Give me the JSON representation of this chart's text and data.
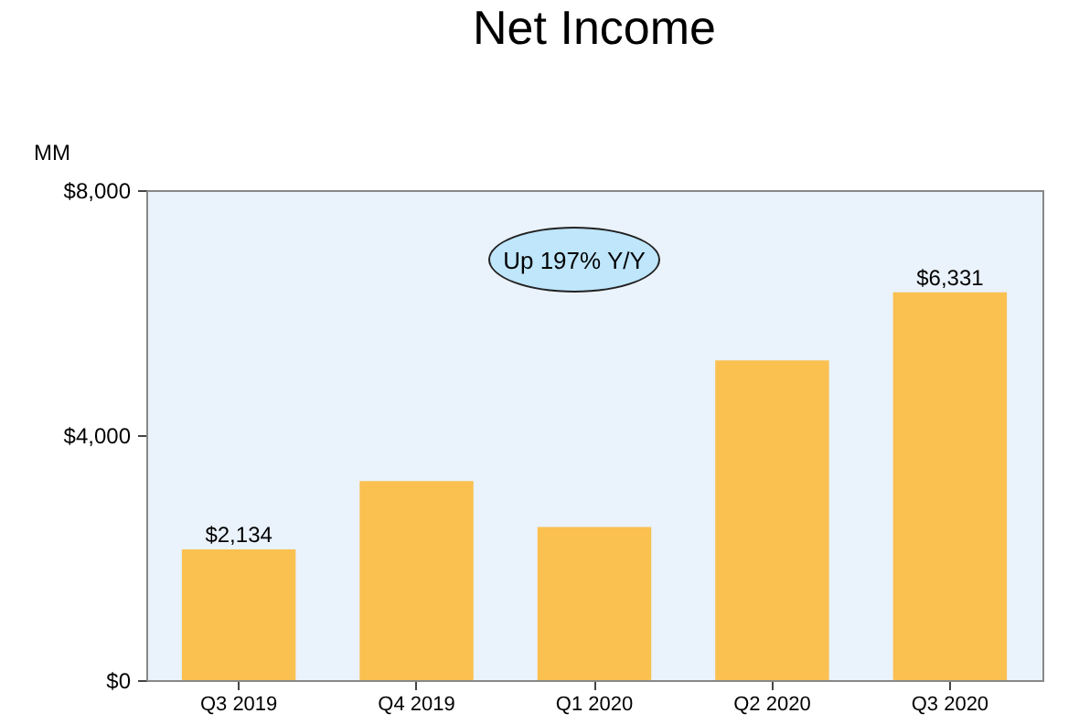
{
  "chart_data": {
    "type": "bar",
    "title": "Net Income",
    "ylabel": "MM",
    "categories": [
      "Q3 2019",
      "Q4 2019",
      "Q1 2020",
      "Q2 2020",
      "Q3 2020"
    ],
    "values": [
      2134,
      3250,
      2500,
      5220,
      6331
    ],
    "value_labels": [
      "$2,134",
      null,
      null,
      null,
      "$6,331"
    ],
    "color": "#fac050",
    "ylim": [
      0,
      8000
    ],
    "yticks": [
      {
        "value": 0,
        "label": "$0"
      },
      {
        "value": 4000,
        "label": "$4,000"
      },
      {
        "value": 8000,
        "label": "$8,000"
      }
    ],
    "grid": false,
    "annotations": [
      "Up 197% Y/Y"
    ]
  }
}
